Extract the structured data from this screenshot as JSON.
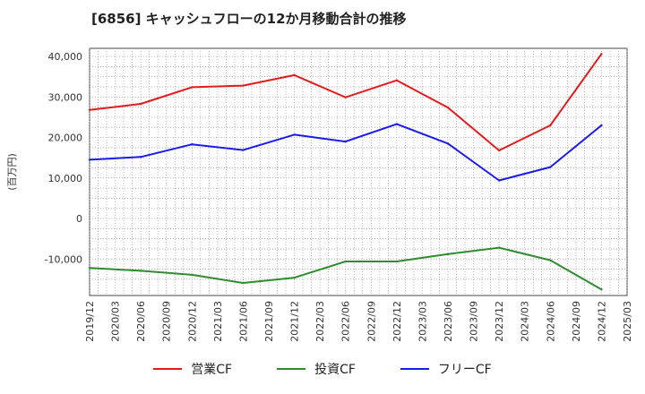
{
  "title": "[6856]  キャッシュフローの12か月移動合計の推移",
  "chart_data": {
    "type": "line",
    "ylabel": "(百万円)",
    "ylim": [
      -19000,
      42000
    ],
    "yticks": [
      40000,
      30000,
      20000,
      10000,
      0,
      -10000
    ],
    "ytick_labels": [
      "40,000",
      "30,000",
      "20,000",
      "10,000",
      "0",
      "-10,000"
    ],
    "x_ticks": [
      "2019/12",
      "2020/03",
      "2020/06",
      "2020/09",
      "2020/12",
      "2021/03",
      "2021/06",
      "2021/09",
      "2021/12",
      "2022/03",
      "2022/06",
      "2022/09",
      "2022/12",
      "2023/03",
      "2023/06",
      "2023/09",
      "2023/12",
      "2024/03",
      "2024/06",
      "2024/09",
      "2024/12",
      "2025/03"
    ],
    "grid": true,
    "legend_position": "bottom",
    "series": [
      {
        "name": "営業CF",
        "color": "#e41a1c",
        "x": [
          "2019/12",
          "2020/06",
          "2020/12",
          "2021/06",
          "2021/12",
          "2022/06",
          "2022/12",
          "2023/06",
          "2023/12",
          "2024/06",
          "2024/12"
        ],
        "values": [
          26800,
          28300,
          32400,
          32800,
          35400,
          29900,
          34100,
          27400,
          16800,
          23000,
          40600
        ]
      },
      {
        "name": "投資CF",
        "color": "#2e8b2e",
        "x": [
          "2019/12",
          "2020/06",
          "2020/12",
          "2021/06",
          "2021/12",
          "2022/06",
          "2022/12",
          "2023/06",
          "2023/12",
          "2024/06",
          "2024/12"
        ],
        "values": [
          -12200,
          -12900,
          -13900,
          -15900,
          -14600,
          -10600,
          -10600,
          -8800,
          -7200,
          -10300,
          -17500
        ]
      },
      {
        "name": "フリーCF",
        "color": "#1a1aee",
        "x": [
          "2019/12",
          "2020/06",
          "2020/12",
          "2021/06",
          "2021/12",
          "2022/06",
          "2022/12",
          "2023/06",
          "2023/12",
          "2024/06",
          "2024/12"
        ],
        "values": [
          14500,
          15200,
          18300,
          16900,
          20700,
          19000,
          23300,
          18500,
          9400,
          12700,
          23000
        ]
      }
    ]
  }
}
